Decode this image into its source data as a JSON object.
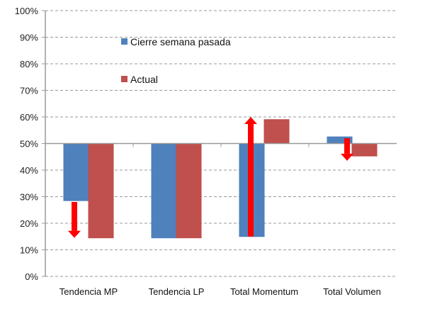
{
  "chart_data": {
    "type": "bar",
    "title": "",
    "xlabel": "",
    "ylabel": "",
    "baseline": 50,
    "ylim": [
      0,
      100
    ],
    "yticks": [
      "0%",
      "10%",
      "20%",
      "30%",
      "40%",
      "50%",
      "60%",
      "70%",
      "80%",
      "90%",
      "100%"
    ],
    "grid": true,
    "categories": [
      "Tendencia MP",
      "Tendencia LP",
      "Total Momentum",
      "Total Volumen"
    ],
    "series": [
      {
        "name": "Cierre semana pasada",
        "color": "#4F81BD",
        "values": [
          28.5,
          14.5,
          15,
          52.5
        ]
      },
      {
        "name": "Actual",
        "color": "#C0504D",
        "values": [
          14.5,
          14.5,
          59,
          45.3
        ]
      }
    ],
    "annotations": [
      {
        "type": "arrow",
        "category": "Tendencia MP",
        "direction": "down",
        "from": 28,
        "to": 14.5,
        "color": "#FF0000"
      },
      {
        "type": "arrow",
        "category": "Total Momentum",
        "direction": "up",
        "from": 15,
        "to": 60,
        "color": "#FF0000"
      },
      {
        "type": "arrow",
        "category": "Total Volumen",
        "direction": "down",
        "from": 52,
        "to": 43.5,
        "color": "#FF0000"
      }
    ],
    "legend": {
      "placement": "top-left-inside",
      "entries": [
        "Cierre semana pasada",
        "Actual"
      ]
    }
  }
}
